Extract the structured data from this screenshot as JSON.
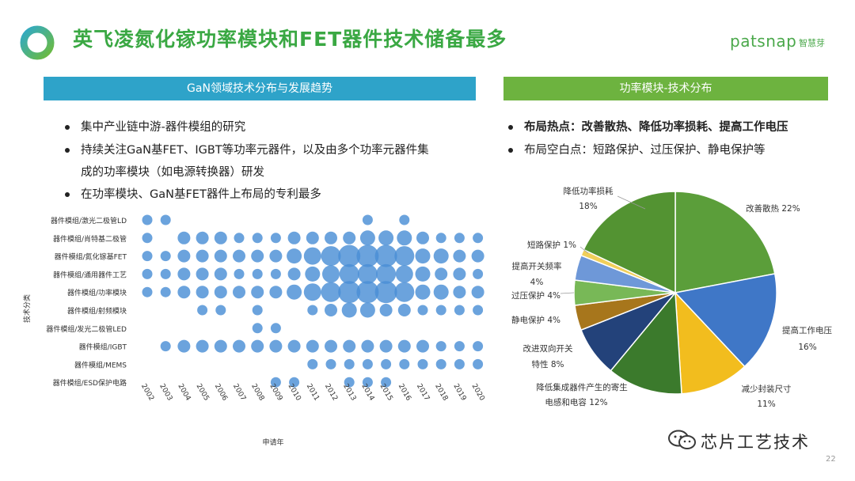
{
  "title": "英飞凌氮化镓功率模块和FET器件技术储备最多",
  "logo": {
    "brand": "patsnap",
    "cn": "智慧芽"
  },
  "left_panel": {
    "header": "GaN领域技术分布与发展趋势",
    "bullets": [
      "集中产业链中游-器件模组的研究",
      "持续关注GaN基FET、IGBT等功率元器件，以及由多个功率元器件集",
      "成的功率模块（如电源转换器）研发",
      "在功率模块、GaN基FET器件上布局的专利最多"
    ]
  },
  "right_panel": {
    "header": "功率模块-技术分布",
    "bullets": [
      {
        "label": "布局热点：",
        "text": "改善散热、降低功率损耗、提高工作电压"
      },
      {
        "label": "布局空白点：",
        "text": "短路保护、过压保护、静电保护等"
      }
    ]
  },
  "watermark": "芯片工艺技术",
  "page_number": "22",
  "chart_data": [
    {
      "type": "scatter",
      "subtype": "bubble-matrix",
      "xlabel": "申请年",
      "ylabel": "技术分类",
      "color": "#4a8fd6",
      "years": [
        "2002",
        "2003",
        "2004",
        "2005",
        "2006",
        "2007",
        "2008",
        "2009",
        "2010",
        "2011",
        "2012",
        "2013",
        "2014",
        "2015",
        "2016",
        "2017",
        "2018",
        "2019",
        "2020"
      ],
      "categories": [
        "器件模组/激光二极管LD",
        "器件模组/肖特基二极管",
        "器件模组/氮化镓基FET",
        "器件模组/通用器件工艺",
        "器件模组/功率模块",
        "器件模组/射频模块",
        "器件模组/发光二极管LED",
        "器件模组/IGBT",
        "器件模组/MEMS",
        "器件模组/ESD保护电路"
      ],
      "values": [
        [
          1,
          1,
          0,
          0,
          0,
          0,
          0,
          0,
          0,
          0,
          0,
          0,
          1,
          0,
          1,
          0,
          0,
          0,
          0
        ],
        [
          1,
          0,
          2,
          2,
          2,
          1,
          1,
          1,
          2,
          2,
          2,
          2,
          3,
          3,
          3,
          2,
          1,
          1,
          1
        ],
        [
          1,
          1,
          2,
          2,
          2,
          2,
          2,
          2,
          3,
          4,
          5,
          6,
          6,
          6,
          5,
          3,
          3,
          2,
          2
        ],
        [
          1,
          1,
          2,
          2,
          2,
          1,
          1,
          1,
          2,
          3,
          4,
          5,
          5,
          5,
          4,
          3,
          2,
          2,
          1
        ],
        [
          1,
          1,
          2,
          2,
          2,
          2,
          2,
          2,
          3,
          4,
          5,
          6,
          6,
          6,
          5,
          3,
          3,
          2,
          2
        ],
        [
          0,
          0,
          0,
          1,
          1,
          0,
          1,
          0,
          0,
          1,
          2,
          3,
          3,
          2,
          2,
          1,
          1,
          1,
          1
        ],
        [
          0,
          0,
          0,
          0,
          0,
          0,
          1,
          1,
          0,
          0,
          0,
          0,
          0,
          0,
          0,
          0,
          0,
          0,
          0
        ],
        [
          0,
          1,
          2,
          2,
          2,
          2,
          2,
          2,
          2,
          2,
          2,
          2,
          2,
          2,
          2,
          2,
          1,
          1,
          1
        ],
        [
          0,
          0,
          0,
          0,
          0,
          0,
          0,
          0,
          0,
          1,
          1,
          1,
          1,
          1,
          1,
          1,
          1,
          1,
          1
        ],
        [
          0,
          0,
          0,
          0,
          0,
          0,
          0,
          1,
          1,
          0,
          0,
          1,
          1,
          1,
          0,
          0,
          0,
          0,
          0
        ]
      ]
    },
    {
      "type": "pie",
      "title": "功率模块-技术分布",
      "slices": [
        {
          "label": "改善散热",
          "pct": "22%",
          "value": 22,
          "color": "#5b9e3a"
        },
        {
          "label": "提高工作电压",
          "pct": "16%",
          "value": 16,
          "color": "#3f77c7"
        },
        {
          "label": "减少封装尺寸",
          "pct": "11%",
          "value": 11,
          "color": "#f2bd1e"
        },
        {
          "label": "降低集成器件产生的寄生电感和电容",
          "pct": "12%",
          "value": 12,
          "color": "#3b7a2c"
        },
        {
          "label": "改进双向开关特性",
          "pct": "8%",
          "value": 8,
          "color": "#23427a"
        },
        {
          "label": "静电保护",
          "pct": "4%",
          "value": 4,
          "color": "#a7761c"
        },
        {
          "label": "过压保护",
          "pct": "4%",
          "value": 4,
          "color": "#78b857"
        },
        {
          "label": "提高开关频率",
          "pct": "4%",
          "value": 4,
          "color": "#6e98d8"
        },
        {
          "label": "短路保护",
          "pct": "1%",
          "value": 1,
          "color": "#f0cf5a"
        },
        {
          "label": "降低功率损耗",
          "pct": "18%",
          "value": 18,
          "color": "#539332"
        }
      ]
    }
  ]
}
